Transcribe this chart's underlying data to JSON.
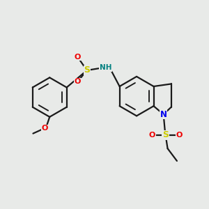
{
  "background_color": "#e8eae8",
  "bond_color": "#1a1a1a",
  "atom_colors": {
    "N": "#0000ee",
    "O": "#ee0000",
    "S": "#cccc00",
    "NH": "#008080",
    "C": "#1a1a1a"
  },
  "lw": 1.6,
  "dbo": 0.018
}
